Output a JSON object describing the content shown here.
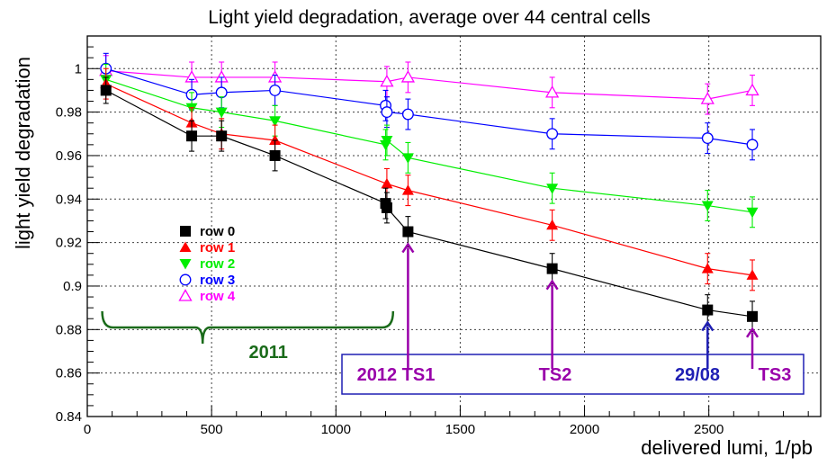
{
  "chart_data": {
    "type": "line",
    "title": "Light yield degradation, average over 44 central cells",
    "xlabel": "delivered lumi, 1/pb",
    "ylabel": "light yield degradation",
    "xlim": [
      0,
      2950
    ],
    "ylim": [
      0.84,
      1.015
    ],
    "grid": true,
    "xticks": [
      0,
      500,
      1000,
      1500,
      2000,
      2500
    ],
    "yticks": [
      0.84,
      0.86,
      0.88,
      0.9,
      0.92,
      0.94,
      0.96,
      0.98,
      1
    ],
    "legend_position": "middle-left",
    "series": [
      {
        "name": "row 0",
        "color": "#000000",
        "marker": "filled-square",
        "x": [
          75,
          420,
          540,
          755,
          1200,
          1205,
          1290,
          1870,
          2495,
          2675
        ],
        "y": [
          0.99,
          0.969,
          0.969,
          0.96,
          0.938,
          0.936,
          0.925,
          0.908,
          0.889,
          0.886
        ],
        "err": [
          0.006,
          0.007,
          0.007,
          0.007,
          0.007,
          0.007,
          0.007,
          0.007,
          0.007,
          0.007
        ]
      },
      {
        "name": "row 1",
        "color": "#ff0000",
        "marker": "filled-triangle-up",
        "x": [
          75,
          420,
          540,
          755,
          1205,
          1290,
          1870,
          2495,
          2675
        ],
        "y": [
          0.993,
          0.975,
          0.97,
          0.967,
          0.947,
          0.944,
          0.928,
          0.908,
          0.905
        ],
        "err": [
          0.007,
          0.007,
          0.007,
          0.007,
          0.007,
          0.007,
          0.007,
          0.007,
          0.007
        ]
      },
      {
        "name": "row 2",
        "color": "#00ee00",
        "marker": "filled-triangle-down",
        "x": [
          75,
          420,
          540,
          755,
          1200,
          1205,
          1290,
          1870,
          2495,
          2675
        ],
        "y": [
          0.995,
          0.982,
          0.98,
          0.976,
          0.965,
          0.967,
          0.959,
          0.945,
          0.937,
          0.934
        ],
        "err": [
          0.007,
          0.007,
          0.007,
          0.007,
          0.007,
          0.007,
          0.007,
          0.007,
          0.007,
          0.007
        ]
      },
      {
        "name": "row 3",
        "color": "#0000ff",
        "marker": "open-circle",
        "x": [
          75,
          420,
          540,
          755,
          1200,
          1205,
          1290,
          1870,
          2495,
          2675
        ],
        "y": [
          1.0,
          0.988,
          0.989,
          0.99,
          0.983,
          0.98,
          0.979,
          0.97,
          0.968,
          0.965
        ],
        "err": [
          0.007,
          0.007,
          0.007,
          0.007,
          0.007,
          0.007,
          0.007,
          0.007,
          0.007,
          0.007
        ]
      },
      {
        "name": "row 4",
        "color": "#ff00ff",
        "marker": "open-triangle-up",
        "x": [
          75,
          420,
          540,
          755,
          1205,
          1290,
          1870,
          2495,
          2675
        ],
        "y": [
          0.999,
          0.996,
          0.996,
          0.996,
          0.994,
          0.996,
          0.989,
          0.986,
          0.99
        ],
        "err": [
          0.007,
          0.007,
          0.007,
          0.007,
          0.007,
          0.007,
          0.007,
          0.007,
          0.007
        ]
      }
    ],
    "annotations": {
      "bracket": {
        "label": "2011",
        "color": "#1a6b1a",
        "x_start": 60,
        "x_end": 1230
      },
      "box_border_color": "#1f1fb4",
      "arrows": [
        {
          "label": "2012 TS1",
          "x": 1290,
          "color": "#9900aa"
        },
        {
          "label": "TS2",
          "x": 1870,
          "color": "#9900aa"
        },
        {
          "label": "29/08",
          "x": 2495,
          "color": "#1f1fb4"
        },
        {
          "label": "TS3",
          "x": 2675,
          "color": "#9900aa"
        }
      ]
    }
  }
}
